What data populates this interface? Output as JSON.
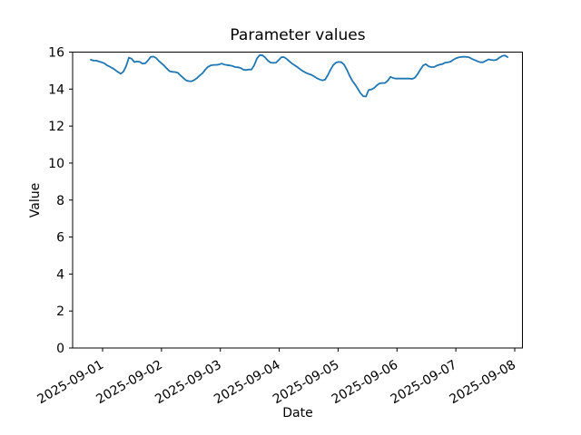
{
  "chart_data": {
    "type": "line",
    "title": "Parameter values",
    "xlabel": "Date",
    "ylabel": "Value",
    "grid": false,
    "legend": false,
    "x_axis": {
      "tick_labels": [
        "2025-09-01",
        "2025-09-02",
        "2025-09-03",
        "2025-09-04",
        "2025-09-05",
        "2025-09-06",
        "2025-09-07",
        "2025-09-08"
      ],
      "tick_day_offsets": [
        0,
        1,
        2,
        3,
        4,
        5,
        6,
        7
      ],
      "xlim_day_offsets": [
        -0.509,
        7.131
      ],
      "tick_rotation_deg": 30
    },
    "y_axis": {
      "tick_labels": [
        "0",
        "2",
        "4",
        "6",
        "8",
        "10",
        "12",
        "14",
        "16"
      ],
      "ticks": [
        0,
        2,
        4,
        6,
        8,
        10,
        12,
        14,
        16
      ],
      "ylim": [
        0,
        16
      ]
    },
    "series": [
      {
        "name": "parameter-values",
        "color": "#1f77b4",
        "x_start_day_offset": -0.2,
        "x_step_days": 0.04626,
        "values": [
          15.59,
          15.54,
          15.54,
          15.49,
          15.45,
          15.39,
          15.28,
          15.21,
          15.13,
          15.03,
          14.92,
          14.83,
          14.95,
          15.25,
          15.7,
          15.64,
          15.46,
          15.5,
          15.47,
          15.38,
          15.39,
          15.55,
          15.74,
          15.76,
          15.68,
          15.52,
          15.39,
          15.26,
          15.1,
          14.96,
          14.93,
          14.92,
          14.88,
          14.73,
          14.6,
          14.47,
          14.43,
          14.42,
          14.49,
          14.6,
          14.74,
          14.86,
          15.05,
          15.2,
          15.28,
          15.31,
          15.31,
          15.33,
          15.38,
          15.33,
          15.3,
          15.28,
          15.25,
          15.19,
          15.18,
          15.14,
          15.05,
          15.03,
          15.06,
          15.06,
          15.3,
          15.66,
          15.84,
          15.83,
          15.71,
          15.54,
          15.43,
          15.42,
          15.43,
          15.58,
          15.73,
          15.72,
          15.62,
          15.49,
          15.37,
          15.27,
          15.17,
          15.06,
          14.96,
          14.88,
          14.82,
          14.77,
          14.68,
          14.59,
          14.52,
          14.47,
          14.51,
          14.75,
          15.05,
          15.3,
          15.43,
          15.47,
          15.45,
          15.32,
          15.05,
          14.72,
          14.45,
          14.25,
          14.02,
          13.78,
          13.62,
          13.6,
          13.95,
          13.98,
          14.06,
          14.2,
          14.31,
          14.33,
          14.33,
          14.45,
          14.66,
          14.6,
          14.57,
          14.57,
          14.57,
          14.57,
          14.57,
          14.57,
          14.55,
          14.62,
          14.82,
          15.06,
          15.28,
          15.35,
          15.23,
          15.19,
          15.19,
          15.27,
          15.32,
          15.35,
          15.42,
          15.45,
          15.48,
          15.58,
          15.66,
          15.71,
          15.74,
          15.75,
          15.74,
          15.71,
          15.63,
          15.57,
          15.5,
          15.45,
          15.45,
          15.53,
          15.61,
          15.58,
          15.56,
          15.59,
          15.7,
          15.79,
          15.82,
          15.73
        ]
      }
    ]
  }
}
